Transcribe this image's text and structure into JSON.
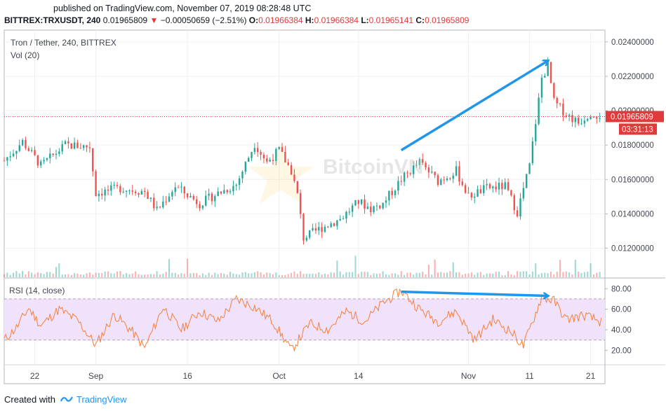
{
  "header": {
    "published": "published on TradingView.com, November 07, 2019 08:28:48 UTC",
    "symbol": "BITTREX:TRXUSDT, 240",
    "last": "0.01965809",
    "change": "−0.00050659 (−2.51%)",
    "o_label": "O:",
    "o_value": "0.01966384",
    "h_label": "H:",
    "h_value": "0.01966384",
    "l_label": "L:",
    "l_value": "0.01965141",
    "c_label": "C:",
    "c_value": "0.01965809"
  },
  "legend": {
    "main": "Tron / Tether, 240, BITTREX",
    "vol": "Vol (20)",
    "rsi": "RSI (14, close)"
  },
  "watermark": "BitcoinVN",
  "footer": {
    "created": "Created with",
    "brand": "TradingView"
  },
  "colors": {
    "up": "#26a69a",
    "down": "#ef5350",
    "rsi": "#f57f3a",
    "band": "#f1e2fb",
    "arrow": "#2196e8",
    "price_line": "#e03a3a"
  },
  "chart_data": [
    {
      "type": "candlestick",
      "title": "Tron / Tether, 240, BITTREX",
      "y_ticks": [
        "0.01200000",
        "0.01400000",
        "0.01600000",
        "0.01800000",
        "0.02000000",
        "0.02200000",
        "0.02400000"
      ],
      "ylim": [
        0.0108,
        0.0244
      ],
      "x_ticks": [
        "22",
        "Sep",
        "16",
        "Oct",
        "14",
        "Nov",
        "11",
        "21"
      ],
      "x_tick_dates": [
        "2019-08-22",
        "2019-09-01",
        "2019-09-16",
        "2019-10-01",
        "2019-10-14",
        "2019-11-01",
        "2019-11-11",
        "2019-11-21"
      ],
      "xlim": [
        "2019-08-17",
        "2019-11-23"
      ],
      "price_label": "0.01965809",
      "countdown": "03:31:13",
      "close_path": [
        {
          "date": "2019-08-17",
          "price": 0.0171
        },
        {
          "date": "2019-08-20",
          "price": 0.0182
        },
        {
          "date": "2019-08-23",
          "price": 0.0168
        },
        {
          "date": "2019-08-27",
          "price": 0.018
        },
        {
          "date": "2019-08-31",
          "price": 0.0179
        },
        {
          "date": "2019-09-01",
          "price": 0.0152
        },
        {
          "date": "2019-09-05",
          "price": 0.0155
        },
        {
          "date": "2019-09-09",
          "price": 0.0153
        },
        {
          "date": "2019-09-11",
          "price": 0.0142
        },
        {
          "date": "2019-09-14",
          "price": 0.0156
        },
        {
          "date": "2019-09-18",
          "price": 0.0146
        },
        {
          "date": "2019-09-21",
          "price": 0.0152
        },
        {
          "date": "2019-09-24",
          "price": 0.0157
        },
        {
          "date": "2019-09-27",
          "price": 0.0181
        },
        {
          "date": "2019-09-29",
          "price": 0.017
        },
        {
          "date": "2019-10-01",
          "price": 0.0177
        },
        {
          "date": "2019-10-03",
          "price": 0.0165
        },
        {
          "date": "2019-10-04",
          "price": 0.0151
        },
        {
          "date": "2019-10-05",
          "price": 0.0126
        },
        {
          "date": "2019-10-08",
          "price": 0.0132
        },
        {
          "date": "2019-10-11",
          "price": 0.0137
        },
        {
          "date": "2019-10-14",
          "price": 0.0147
        },
        {
          "date": "2019-10-16",
          "price": 0.0143
        },
        {
          "date": "2019-10-18",
          "price": 0.0146
        },
        {
          "date": "2019-10-21",
          "price": 0.016
        },
        {
          "date": "2019-10-24",
          "price": 0.017
        },
        {
          "date": "2019-10-27",
          "price": 0.0159
        },
        {
          "date": "2019-10-30",
          "price": 0.0165
        },
        {
          "date": "2019-11-01",
          "price": 0.015
        },
        {
          "date": "2019-11-04",
          "price": 0.0155
        },
        {
          "date": "2019-11-07",
          "price": 0.0156
        },
        {
          "date": "2019-11-09",
          "price": 0.0141
        },
        {
          "date": "2019-11-11",
          "price": 0.0168
        },
        {
          "date": "2019-11-13",
          "price": 0.0219
        },
        {
          "date": "2019-11-14",
          "price": 0.0226
        },
        {
          "date": "2019-11-15",
          "price": 0.0205
        },
        {
          "date": "2019-11-17",
          "price": 0.0198
        },
        {
          "date": "2019-11-19",
          "price": 0.0193
        },
        {
          "date": "2019-11-21",
          "price": 0.0199
        },
        {
          "date": "2019-11-23",
          "price": 0.01966
        }
      ],
      "annotations": [
        {
          "type": "arrow",
          "from": [
            "2019-10-21",
            0.0177
          ],
          "to": [
            "2019-11-14",
            0.0229
          ]
        }
      ]
    },
    {
      "type": "line",
      "title": "RSI (14, close)",
      "y_ticks": [
        "20.00",
        "40.00",
        "60.00",
        "80.00"
      ],
      "ylim": [
        12,
        87
      ],
      "band": [
        30,
        70
      ],
      "path": [
        {
          "date": "2019-08-17",
          "value": 30
        },
        {
          "date": "2019-08-19",
          "value": 42
        },
        {
          "date": "2019-08-21",
          "value": 61
        },
        {
          "date": "2019-08-23",
          "value": 44
        },
        {
          "date": "2019-08-26",
          "value": 60
        },
        {
          "date": "2019-08-29",
          "value": 49
        },
        {
          "date": "2019-09-01",
          "value": 25
        },
        {
          "date": "2019-09-04",
          "value": 55
        },
        {
          "date": "2019-09-07",
          "value": 38
        },
        {
          "date": "2019-09-09",
          "value": 22
        },
        {
          "date": "2019-09-12",
          "value": 62
        },
        {
          "date": "2019-09-15",
          "value": 40
        },
        {
          "date": "2019-09-18",
          "value": 58
        },
        {
          "date": "2019-09-21",
          "value": 48
        },
        {
          "date": "2019-09-24",
          "value": 70
        },
        {
          "date": "2019-09-27",
          "value": 62
        },
        {
          "date": "2019-09-30",
          "value": 48
        },
        {
          "date": "2019-10-03",
          "value": 20
        },
        {
          "date": "2019-10-06",
          "value": 46
        },
        {
          "date": "2019-10-09",
          "value": 40
        },
        {
          "date": "2019-10-12",
          "value": 58
        },
        {
          "date": "2019-10-15",
          "value": 48
        },
        {
          "date": "2019-10-18",
          "value": 66
        },
        {
          "date": "2019-10-21",
          "value": 78
        },
        {
          "date": "2019-10-24",
          "value": 60
        },
        {
          "date": "2019-10-27",
          "value": 48
        },
        {
          "date": "2019-10-30",
          "value": 58
        },
        {
          "date": "2019-11-02",
          "value": 30
        },
        {
          "date": "2019-11-05",
          "value": 50
        },
        {
          "date": "2019-11-08",
          "value": 38
        },
        {
          "date": "2019-11-10",
          "value": 24
        },
        {
          "date": "2019-11-13",
          "value": 72
        },
        {
          "date": "2019-11-15",
          "value": 68
        },
        {
          "date": "2019-11-17",
          "value": 50
        },
        {
          "date": "2019-11-20",
          "value": 54
        },
        {
          "date": "2019-11-23",
          "value": 47
        }
      ],
      "annotations": [
        {
          "type": "arrow",
          "from": [
            "2019-10-21",
            77
          ],
          "to": [
            "2019-11-14",
            73
          ]
        }
      ]
    }
  ]
}
